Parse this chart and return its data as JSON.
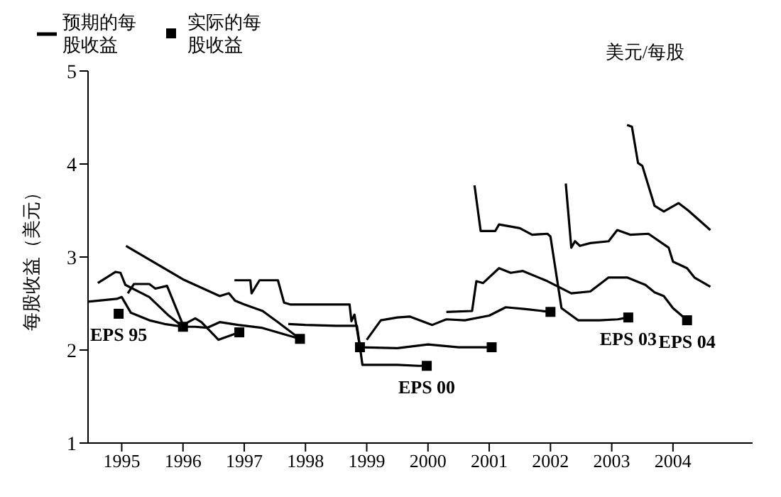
{
  "chart_data": {
    "type": "line",
    "subtitle": "美元/每股",
    "ylabel": "每股收益（美元）",
    "legend": "top left",
    "marker": "none",
    "line_style": "solid",
    "xlim": [
      1994.45,
      2005.3
    ],
    "xticks": [
      1995,
      1996,
      1997,
      1998,
      1999,
      2000,
      2001,
      2002,
      2003,
      2004
    ],
    "ylim": [
      1,
      5
    ],
    "yticks": [
      1,
      2,
      3,
      4,
      5
    ],
    "series": [
      {
        "name": "预期的每股收益",
        "color": "#000000",
        "x": [
          1994.45,
          1994.92,
          1995.0,
          1995.15,
          1995.45,
          1995.7,
          1996.0
        ],
        "values": [
          2.52,
          2.55,
          2.57,
          2.4,
          2.32,
          2.28,
          2.25
        ]
      },
      {
        "color": "#000000",
        "x": [
          1994.61,
          1994.9,
          1994.98,
          1995.06,
          1995.45,
          1995.75,
          1996.0
        ],
        "values": [
          2.72,
          2.84,
          2.83,
          2.7,
          2.57,
          2.38,
          2.25
        ]
      },
      {
        "color": "#000000",
        "x": [
          1995.1,
          1995.2,
          1995.45,
          1995.55,
          1995.74,
          1996.0,
          1996.2,
          1996.3,
          1996.45,
          1996.58,
          1996.75,
          1996.92
        ],
        "values": [
          2.61,
          2.71,
          2.71,
          2.66,
          2.69,
          2.27,
          2.34,
          2.3,
          2.2,
          2.11,
          2.15,
          2.19
        ]
      },
      {
        "color": "#000000",
        "x": [
          1996.0,
          1996.2,
          1996.4,
          1996.6,
          1996.9,
          1997.28,
          1997.91
        ],
        "values": [
          2.25,
          2.25,
          2.24,
          2.3,
          2.27,
          2.24,
          2.12
        ]
      },
      {
        "color": "#000000",
        "x": [
          1995.07,
          1996.0,
          1996.6,
          1996.75,
          1996.85,
          1997.0,
          1997.3,
          1997.55,
          1997.91
        ],
        "values": [
          3.12,
          2.76,
          2.58,
          2.61,
          2.53,
          2.49,
          2.42,
          2.3,
          2.12
        ]
      },
      {
        "color": "#000000",
        "x": [
          1996.84,
          1997.1,
          1997.12,
          1997.25,
          1997.55,
          1997.65,
          1997.75,
          1998.72,
          1998.75,
          1998.8,
          1998.89
        ],
        "values": [
          2.75,
          2.75,
          2.61,
          2.75,
          2.75,
          2.51,
          2.49,
          2.49,
          2.31,
          2.38,
          2.03
        ]
      },
      {
        "color": "#000000",
        "x": [
          1997.72,
          1998.0,
          1998.5,
          1998.84,
          1998.89
        ],
        "values": [
          2.28,
          2.27,
          2.26,
          2.26,
          2.03
        ]
      },
      {
        "color": "#000000",
        "x": [
          1998.89,
          1998.93,
          1999.5,
          1999.84,
          1999.98
        ],
        "values": [
          2.03,
          1.84,
          1.84,
          1.83,
          1.83
        ]
      },
      {
        "color": "#000000",
        "x": [
          1998.89,
          1999.5,
          2000.0,
          2000.5,
          2001.04
        ],
        "values": [
          2.03,
          2.02,
          2.06,
          2.03,
          2.03
        ]
      },
      {
        "color": "#000000",
        "x": [
          1999.0,
          1999.23,
          1999.5,
          1999.7,
          2000.07,
          2000.3,
          2000.6,
          2001.0,
          2001.27,
          2001.6,
          2002.0
        ],
        "values": [
          2.11,
          2.32,
          2.35,
          2.36,
          2.27,
          2.33,
          2.32,
          2.37,
          2.46,
          2.44,
          2.41
        ]
      },
      {
        "color": "#000000",
        "x": [
          2000.3,
          2000.72,
          2000.79,
          2000.9,
          2001.16,
          2001.35,
          2001.55,
          2001.95,
          2002.1,
          2002.34,
          2002.65,
          2002.95,
          2003.25,
          2003.55,
          2003.7,
          2003.85,
          2004.0,
          2004.23
        ],
        "values": [
          2.41,
          2.42,
          2.74,
          2.72,
          2.88,
          2.83,
          2.85,
          2.74,
          2.69,
          2.61,
          2.63,
          2.78,
          2.78,
          2.7,
          2.62,
          2.58,
          2.45,
          2.32
        ]
      },
      {
        "color": "#000000",
        "x": [
          2000.76,
          2000.86,
          2001.1,
          2001.16,
          2001.5,
          2001.7,
          2001.95,
          2002.0,
          2002.18,
          2002.45,
          2002.8,
          2003.1,
          2003.27
        ],
        "values": [
          3.77,
          3.28,
          3.28,
          3.35,
          3.31,
          3.24,
          3.25,
          3.22,
          2.45,
          2.32,
          2.32,
          2.33,
          2.35
        ]
      },
      {
        "color": "#000000",
        "x": [
          2002.25,
          2002.34,
          2002.4,
          2002.48,
          2002.65,
          2002.95,
          2003.09,
          2003.3,
          2003.6,
          2003.93,
          2004.0,
          2004.23,
          2004.35,
          2004.61
        ],
        "values": [
          3.79,
          3.1,
          3.17,
          3.12,
          3.15,
          3.17,
          3.29,
          3.24,
          3.25,
          3.1,
          2.95,
          2.88,
          2.78,
          2.68
        ]
      },
      {
        "color": "#000000",
        "x": [
          2003.25,
          2003.33,
          2003.43,
          2003.5,
          2003.7,
          2003.85,
          2004.09,
          2004.25,
          2004.61
        ],
        "values": [
          4.42,
          4.4,
          4.01,
          3.98,
          3.55,
          3.49,
          3.58,
          3.5,
          3.29
        ]
      },
      {
        "name": "实际的每股收益",
        "type": "scatter",
        "marker": "square",
        "color": "#000000",
        "x": [
          1994.95,
          1996.0,
          1996.92,
          1997.91,
          1998.89,
          1999.98,
          2001.04,
          2002.0,
          2003.27,
          2004.23
        ],
        "values": [
          2.39,
          2.25,
          2.19,
          2.12,
          2.03,
          1.83,
          2.03,
          2.41,
          2.35,
          2.32
        ]
      }
    ],
    "annotations": [
      {
        "text": "EPS 95",
        "x": 1994.95,
        "y": 2.39
      },
      {
        "text": "EPS 00",
        "x": 1999.98,
        "y": 1.83
      },
      {
        "text": "EPS 03",
        "x": 2003.27,
        "y": 2.35
      },
      {
        "text": "EPS 04",
        "x": 2004.23,
        "y": 2.32
      }
    ]
  }
}
